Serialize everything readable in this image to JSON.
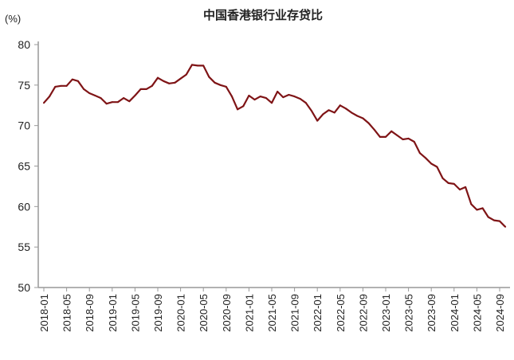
{
  "chart_data": {
    "type": "line",
    "title": "中国香港银行业存贷比",
    "ylabel": "(%)",
    "xlabel": "",
    "ylim": [
      50,
      80
    ],
    "yticks": [
      50,
      55,
      60,
      65,
      70,
      75,
      80
    ],
    "xtick_labels": [
      "2018-01",
      "2018-05",
      "2018-09",
      "2019-01",
      "2019-05",
      "2019-09",
      "2020-01",
      "2020-05",
      "2020-09",
      "2021-01",
      "2021-05",
      "2021-09",
      "2022-01",
      "2022-05",
      "2022-09",
      "2023-01",
      "2023-05",
      "2023-09",
      "2024-01",
      "2024-05",
      "2024-09"
    ],
    "grid": false,
    "line_color": "#7f1416",
    "start": "2018-01",
    "values": [
      72.8,
      73.6,
      74.8,
      74.9,
      74.9,
      75.7,
      75.5,
      74.5,
      74.0,
      73.7,
      73.4,
      72.7,
      72.9,
      72.9,
      73.4,
      73.0,
      73.7,
      74.5,
      74.5,
      74.9,
      75.9,
      75.5,
      75.2,
      75.3,
      75.8,
      76.3,
      77.5,
      77.4,
      77.4,
      76.0,
      75.3,
      75.0,
      74.8,
      73.6,
      72.0,
      72.4,
      73.7,
      73.2,
      73.6,
      73.4,
      72.8,
      74.2,
      73.5,
      73.8,
      73.6,
      73.3,
      72.8,
      71.8,
      70.6,
      71.4,
      71.9,
      71.6,
      72.5,
      72.1,
      71.6,
      71.2,
      70.9,
      70.3,
      69.5,
      68.6,
      68.6,
      69.3,
      68.8,
      68.3,
      68.4,
      68.0,
      66.6,
      66.0,
      65.3,
      64.9,
      63.5,
      62.9,
      62.8,
      62.1,
      62.4,
      60.3,
      59.6,
      59.8,
      58.7,
      58.3,
      58.2,
      57.5
    ]
  }
}
